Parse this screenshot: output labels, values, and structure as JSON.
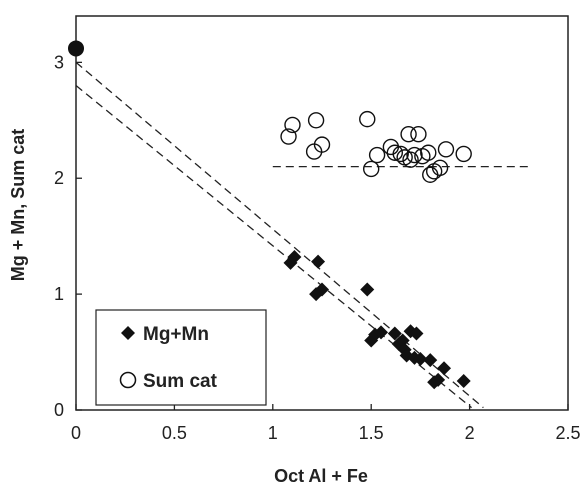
{
  "chart_data": {
    "type": "scatter",
    "title": "",
    "xlabel": "Oct Al + Fe",
    "ylabel": "Mg + Mn, Sum cat",
    "xlim": [
      0,
      2.5
    ],
    "ylim": [
      0,
      3.4
    ],
    "x_ticks": [
      "0",
      "0.5",
      "1",
      "1.5",
      "2",
      "2.5"
    ],
    "y_ticks": [
      "0",
      "1",
      "2",
      "3"
    ],
    "grid": false,
    "legend_position": "bottom-left",
    "series": [
      {
        "name": "Mg+Mn",
        "marker": "filled-diamond",
        "color": "#111111",
        "points": [
          [
            1.09,
            1.27
          ],
          [
            1.11,
            1.32
          ],
          [
            1.22,
            1.0
          ],
          [
            1.23,
            1.28
          ],
          [
            1.25,
            1.04
          ],
          [
            1.48,
            1.04
          ],
          [
            1.5,
            0.6
          ],
          [
            1.52,
            0.65
          ],
          [
            1.55,
            0.67
          ],
          [
            1.62,
            0.66
          ],
          [
            1.64,
            0.57
          ],
          [
            1.66,
            0.6
          ],
          [
            1.67,
            0.52
          ],
          [
            1.68,
            0.47
          ],
          [
            1.7,
            0.68
          ],
          [
            1.72,
            0.45
          ],
          [
            1.73,
            0.66
          ],
          [
            1.75,
            0.44
          ],
          [
            1.8,
            0.43
          ],
          [
            1.82,
            0.24
          ],
          [
            1.84,
            0.26
          ],
          [
            1.87,
            0.36
          ],
          [
            1.97,
            0.25
          ]
        ]
      },
      {
        "name": "Sum cat",
        "marker": "open-circle",
        "color": "#111111",
        "points": [
          [
            1.08,
            2.36
          ],
          [
            1.1,
            2.46
          ],
          [
            1.21,
            2.23
          ],
          [
            1.22,
            2.5
          ],
          [
            1.25,
            2.29
          ],
          [
            1.48,
            2.51
          ],
          [
            1.5,
            2.08
          ],
          [
            1.53,
            2.2
          ],
          [
            1.6,
            2.27
          ],
          [
            1.62,
            2.22
          ],
          [
            1.65,
            2.21
          ],
          [
            1.67,
            2.18
          ],
          [
            1.69,
            2.38
          ],
          [
            1.7,
            2.16
          ],
          [
            1.72,
            2.2
          ],
          [
            1.74,
            2.38
          ],
          [
            1.76,
            2.19
          ],
          [
            1.79,
            2.22
          ],
          [
            1.8,
            2.03
          ],
          [
            1.82,
            2.06
          ],
          [
            1.85,
            2.09
          ],
          [
            1.88,
            2.25
          ],
          [
            1.97,
            2.21
          ]
        ]
      },
      {
        "name": "",
        "marker": "large-filled-circle",
        "color": "#111111",
        "points": [
          [
            0.0,
            3.12
          ]
        ]
      }
    ],
    "lines": [
      {
        "style": "dashed",
        "from": [
          0.0,
          3.0
        ],
        "to": [
          2.07,
          0.02
        ]
      },
      {
        "style": "dashed",
        "from": [
          0.0,
          2.8
        ],
        "to": [
          2.01,
          0.02
        ]
      },
      {
        "style": "dashed",
        "from": [
          1.0,
          2.1
        ],
        "to": [
          2.3,
          2.1
        ]
      }
    ]
  }
}
